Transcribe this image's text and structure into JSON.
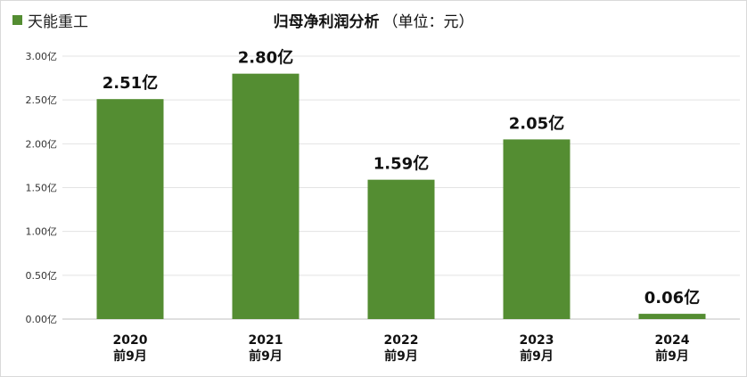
{
  "chart_data": {
    "type": "bar",
    "title": "归母净利润分析",
    "subtitle": "（单位：元）",
    "categories": [
      [
        "2020",
        "前9月"
      ],
      [
        "2021",
        "前9月"
      ],
      [
        "2022",
        "前9月"
      ],
      [
        "2023",
        "前9月"
      ],
      [
        "2024",
        "前9月"
      ]
    ],
    "series": [
      {
        "name": "天能重工",
        "values": [
          2.51,
          2.8,
          1.59,
          2.05,
          0.06
        ],
        "data_labels": [
          "2.51亿",
          "2.80亿",
          "1.59亿",
          "2.05亿",
          "0.06亿"
        ],
        "color": "#548d32"
      }
    ],
    "y_ticks": [
      "0.00亿",
      "0.50亿",
      "1.00亿",
      "1.50亿",
      "2.00亿",
      "2.50亿",
      "3.00亿"
    ],
    "y_tick_values": [
      0,
      0.5,
      1,
      1.5,
      2,
      2.5,
      3
    ],
    "ylim": [
      0,
      3.0
    ],
    "grid": true,
    "legend_position": "top-left",
    "xlabel": "",
    "ylabel": ""
  }
}
